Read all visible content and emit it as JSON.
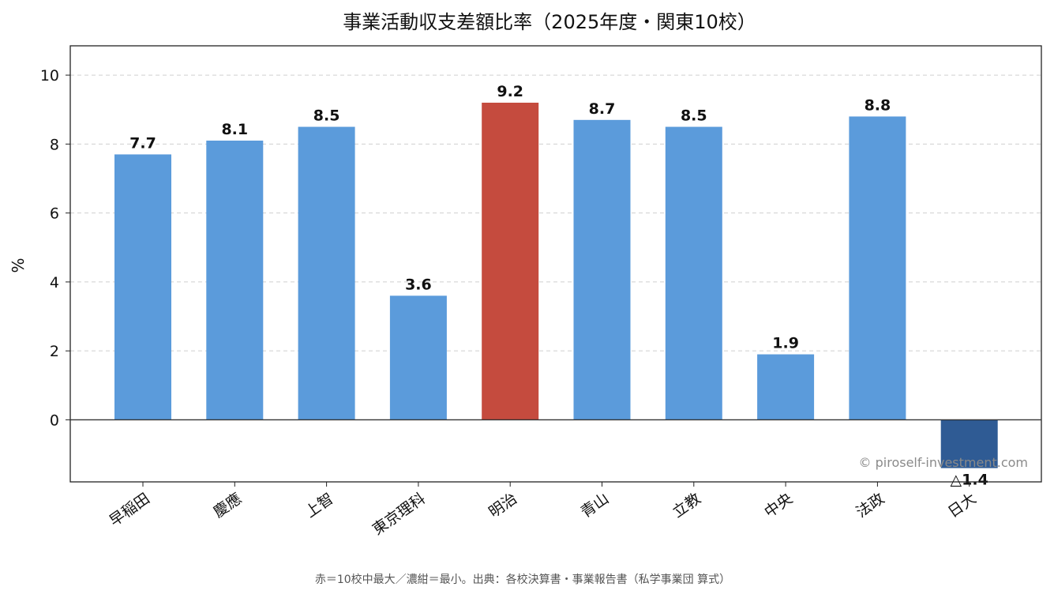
{
  "chart_data": {
    "type": "bar",
    "title": "事業活動収支差額比率（2025年度・関東10校）",
    "ylabel": "%",
    "xlabel": "",
    "categories": [
      "早稲田",
      "慶應",
      "上智",
      "東京理科",
      "明治",
      "青山",
      "立教",
      "中央",
      "法政",
      "日大"
    ],
    "values": [
      7.7,
      8.1,
      8.5,
      3.6,
      9.2,
      8.7,
      8.5,
      1.9,
      8.8,
      -1.4
    ],
    "value_labels": [
      "7.7",
      "8.1",
      "8.5",
      "3.6",
      "9.2",
      "8.7",
      "8.5",
      "1.9",
      "8.8",
      "△1.4"
    ],
    "ylim": [
      -1.8,
      10.85
    ],
    "yticks": [
      0,
      2,
      4,
      6,
      8,
      10
    ],
    "grid": "horizontal dashed",
    "colors": {
      "default": "#5b9bdb",
      "max": "#c54b3e",
      "min": "#2f5b94"
    },
    "highlight": {
      "max": "明治",
      "min": "日大"
    }
  },
  "footnote": "赤＝10校中最大／濃紺＝最小。出典：各校決算書・事業報告書（私学事業団 算式）",
  "watermark": "© piroself-investment.com"
}
